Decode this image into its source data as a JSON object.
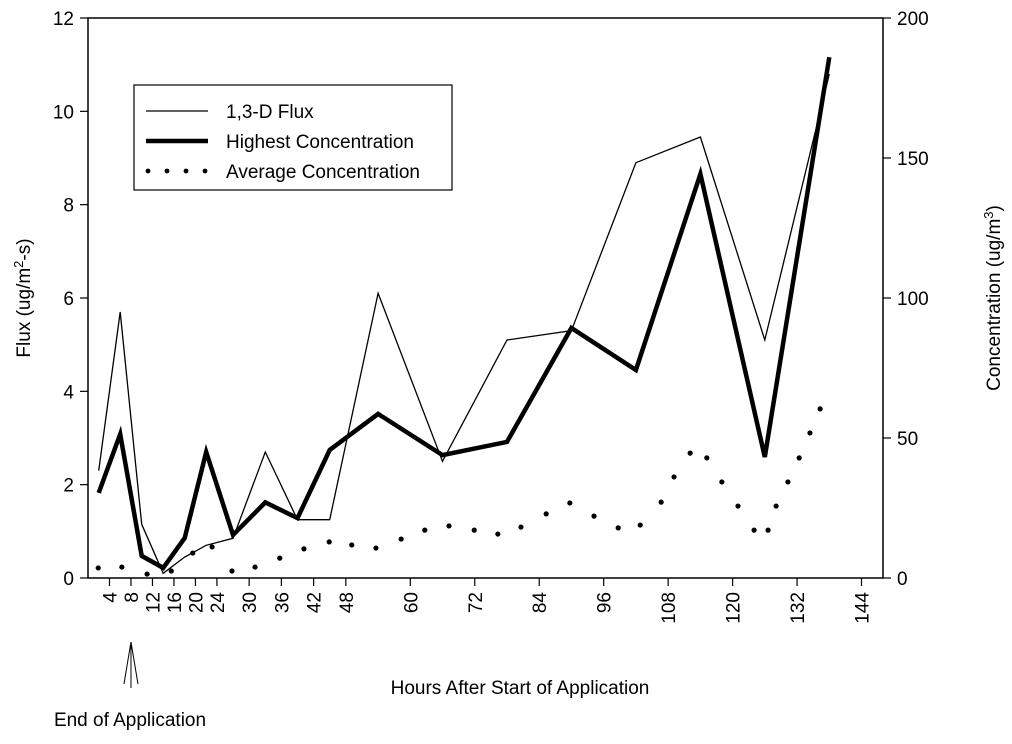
{
  "chart_data": {
    "type": "line",
    "x_label": "Hours After Start of Application",
    "y_label_parts": [
      "Flux (ug/m",
      "2",
      "-s)"
    ],
    "y2_label_parts": [
      "Concentration (ug/m",
      "3",
      ")"
    ],
    "annotation": "End of Application",
    "annotation_x": 8,
    "xlim": [
      0,
      148
    ],
    "xticks": [
      4,
      8,
      12,
      16,
      20,
      24,
      30,
      36,
      42,
      48,
      60,
      72,
      84,
      96,
      108,
      120,
      132,
      144
    ],
    "ylim": [
      0,
      12
    ],
    "yticks": [
      0,
      2,
      4,
      6,
      8,
      10,
      12
    ],
    "y2lim": [
      0,
      200
    ],
    "y2ticks": [
      0,
      50,
      100,
      150,
      200
    ],
    "grid": false,
    "legend": "upper left",
    "series": [
      {
        "name": "1,3-D Flux",
        "color": "#000000",
        "style": "thin",
        "x": [
          2,
          6,
          10,
          14,
          18,
          22,
          27,
          33,
          39,
          45,
          54,
          66,
          78,
          90,
          102,
          114,
          126,
          138
        ],
        "values": [
          2.3,
          5.7,
          1.15,
          0.1,
          0.45,
          0.7,
          0.85,
          2.7,
          1.25,
          1.25,
          6.1,
          2.5,
          5.1,
          5.3,
          8.9,
          9.45,
          5.1,
          10.8
        ]
      },
      {
        "name": "Highest Concentration",
        "color": "#000000",
        "style": "thick",
        "axis": "y2",
        "x": [
          2,
          6,
          10,
          14,
          18,
          22,
          27,
          33,
          39,
          45,
          54,
          66,
          78,
          90,
          102,
          114,
          126,
          138
        ],
        "values": [
          30.4,
          51.4,
          7.9,
          3.6,
          14.3,
          45,
          15.4,
          27,
          21.4,
          45.7,
          58.6,
          43.9,
          48.6,
          89.3,
          74.3,
          144.3,
          43.2,
          186
        ]
      },
      {
        "name": "Average Concentration",
        "color": "#000000",
        "style": "dotted",
        "axis": "y2",
        "x": [
          1.9,
          6.3,
          11,
          15.5,
          19.5,
          23.1,
          26.8,
          31.1,
          35.7,
          40.2,
          44.9,
          49.1,
          53.6,
          58.3,
          62.7,
          67.2,
          71.9,
          76.3,
          80.6,
          85.3,
          89.7,
          94.2,
          98.7,
          102.8,
          106.7,
          109.1,
          112.1,
          115.2,
          118,
          121,
          124,
          126.6,
          128.1,
          130.3,
          132.4,
          134.4,
          136.3
        ],
        "values": [
          3.6,
          3.9,
          1.4,
          2.5,
          8.9,
          11.1,
          2.5,
          3.9,
          7.1,
          10.4,
          12.9,
          11.8,
          10.7,
          13.9,
          17.1,
          18.6,
          17.1,
          15.7,
          18.2,
          22.9,
          26.8,
          22.1,
          17.9,
          18.9,
          27.1,
          36.1,
          44.6,
          42.9,
          34.3,
          25.7,
          17.1,
          17.1,
          25.7,
          34.3,
          42.9,
          51.8,
          60.4
        ]
      }
    ]
  }
}
